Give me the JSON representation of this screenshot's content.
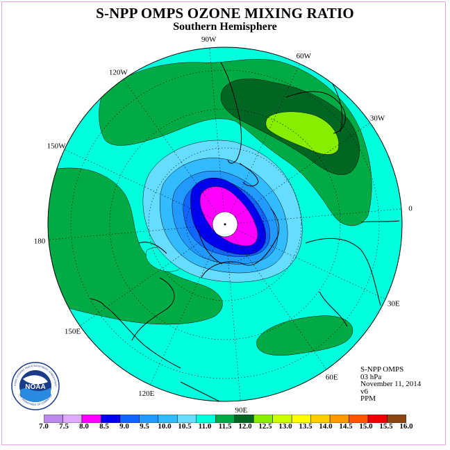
{
  "header": {
    "title": "S-NPP OMPS OZONE MIXING RATIO",
    "subtitle": "Southern Hemisphere"
  },
  "map": {
    "projection": "polar-stereographic-south",
    "grid": "dotted",
    "longitude_labels": [
      "90W",
      "60W",
      "30W",
      "0",
      "30E",
      "60E",
      "90E",
      "120E",
      "150E",
      "180",
      "150W",
      "120W"
    ],
    "polar_cap_color": "#ffffff"
  },
  "info_block": {
    "instrument": "S-NPP OMPS",
    "level": "03 hPa",
    "date": "November 11, 2014",
    "version": "v6",
    "units": "PPM"
  },
  "colorbar": {
    "ticks": [
      "7.0",
      "7.5",
      "8.0",
      "8.5",
      "9.0",
      "9.5",
      "10.0",
      "10.5",
      "11.0",
      "11.5",
      "12.0",
      "12.5",
      "13.0",
      "13.5",
      "14.0",
      "14.5",
      "15.0",
      "15.5",
      "16.0"
    ],
    "colors": [
      "#bb88ee",
      "#ddaaff",
      "#ff00ff",
      "#0000ee",
      "#1166ff",
      "#2299ff",
      "#33bbff",
      "#66ddff",
      "#00ffdd",
      "#00aa44",
      "#006622",
      "#88ee00",
      "#ccff00",
      "#ffff00",
      "#ffcc00",
      "#ff9900",
      "#ff5500",
      "#ee0000",
      "#8b4513"
    ]
  },
  "logo": {
    "text": "NOAA",
    "ring_text": "NATIONAL OCEANIC AND ATMOSPHERIC ADMINISTRATION",
    "ring_text_bottom": "U.S. DEPARTMENT OF COMMERCE"
  }
}
